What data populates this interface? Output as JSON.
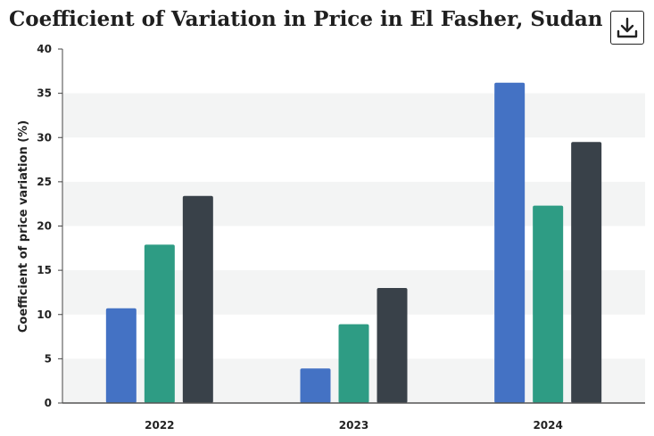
{
  "header": {
    "title": "Coefficient of Variation in Price in El Fasher, Sudan",
    "download_icon": "download-icon"
  },
  "chart_data": {
    "type": "bar",
    "title": "Coefficient of Variation in Price in El Fasher, Sudan",
    "xlabel": "",
    "ylabel": "Coefficient of price variation (%)",
    "categories": [
      "2022",
      "2023",
      "2024"
    ],
    "series": [
      {
        "color": "#4472c4",
        "values": [
          10.7,
          3.9,
          36.2
        ]
      },
      {
        "color": "#2e9c84",
        "values": [
          17.9,
          8.9,
          22.3
        ]
      },
      {
        "color": "#394149",
        "values": [
          23.4,
          13.0,
          29.5
        ]
      }
    ],
    "ylim": [
      0,
      40
    ],
    "yticks": [
      0,
      5,
      10,
      15,
      20,
      25,
      30,
      35,
      40
    ],
    "grid": "alternating horizontal bands",
    "legend": "none"
  }
}
